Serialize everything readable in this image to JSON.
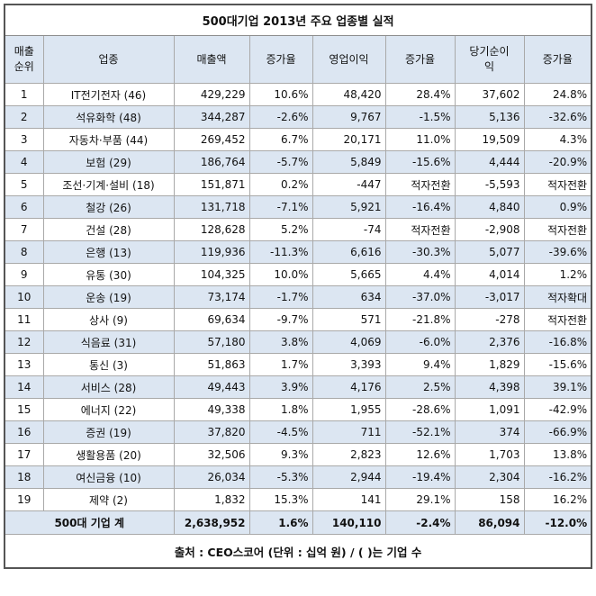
{
  "title": "500대기업 2013년 주요 업종별 실적",
  "headers": [
    "매출\n순위",
    "업종",
    "매출액",
    "증가율",
    "영업이익",
    "증가율",
    "당기순이\n익",
    "증가율"
  ],
  "rows": [
    [
      "1",
      "IT전기전자 (46)",
      "429,229",
      "10.6%",
      "48,420",
      "28.4%",
      "37,602",
      "24.8%"
    ],
    [
      "2",
      "석유화학 (48)",
      "344,287",
      "-2.6%",
      "9,767",
      "-1.5%",
      "5,136",
      "-32.6%"
    ],
    [
      "3",
      "자동차·부품 (44)",
      "269,452",
      "6.7%",
      "20,171",
      "11.0%",
      "19,509",
      "4.3%"
    ],
    [
      "4",
      "보험 (29)",
      "186,764",
      "-5.7%",
      "5,849",
      "-15.6%",
      "4,444",
      "-20.9%"
    ],
    [
      "5",
      "조선·기계·설비 (18)",
      "151,871",
      "0.2%",
      "-447",
      "적자전환",
      "-5,593",
      "적자전환"
    ],
    [
      "6",
      "철강 (26)",
      "131,718",
      "-7.1%",
      "5,921",
      "-16.4%",
      "4,840",
      "0.9%"
    ],
    [
      "7",
      "건설 (28)",
      "128,628",
      "5.2%",
      "-74",
      "적자전환",
      "-2,908",
      "적자전환"
    ],
    [
      "8",
      "은행 (13)",
      "119,936",
      "-11.3%",
      "6,616",
      "-30.3%",
      "5,077",
      "-39.6%"
    ],
    [
      "9",
      "유통 (30)",
      "104,325",
      "10.0%",
      "5,665",
      "4.4%",
      "4,014",
      "1.2%"
    ],
    [
      "10",
      "운송 (19)",
      "73,174",
      "-1.7%",
      "634",
      "-37.0%",
      "-3,017",
      "적자확대"
    ],
    [
      "11",
      "상사 (9)",
      "69,634",
      "-9.7%",
      "571",
      "-21.8%",
      "-278",
      "적자전환"
    ],
    [
      "12",
      "식음료 (31)",
      "57,180",
      "3.8%",
      "4,069",
      "-6.0%",
      "2,376",
      "-16.8%"
    ],
    [
      "13",
      "통신 (3)",
      "51,863",
      "1.7%",
      "3,393",
      "9.4%",
      "1,829",
      "-15.6%"
    ],
    [
      "14",
      "서비스 (28)",
      "49,443",
      "3.9%",
      "4,176",
      "2.5%",
      "4,398",
      "39.1%"
    ],
    [
      "15",
      "에너지 (22)",
      "49,338",
      "1.8%",
      "1,955",
      "-28.6%",
      "1,091",
      "-42.9%"
    ],
    [
      "16",
      "증권 (19)",
      "37,820",
      "-4.5%",
      "711",
      "-52.1%",
      "374",
      "-66.9%"
    ],
    [
      "17",
      "생활용품 (20)",
      "32,506",
      "9.3%",
      "2,823",
      "12.6%",
      "1,703",
      "13.8%"
    ],
    [
      "18",
      "여신금융 (10)",
      "26,034",
      "-5.3%",
      "2,944",
      "-19.4%",
      "2,304",
      "-16.2%"
    ],
    [
      "19",
      "제약 (2)",
      "1,832",
      "15.3%",
      "141",
      "29.1%",
      "158",
      "16.2%"
    ]
  ],
  "total": [
    "500대 기업 계",
    "2,638,952",
    "1.6%",
    "140,110",
    "-2.4%",
    "86,094",
    "-12.0%"
  ],
  "source": "출처 : CEO스코어 (단위 : 십억 원) / ( )는 기업 수"
}
